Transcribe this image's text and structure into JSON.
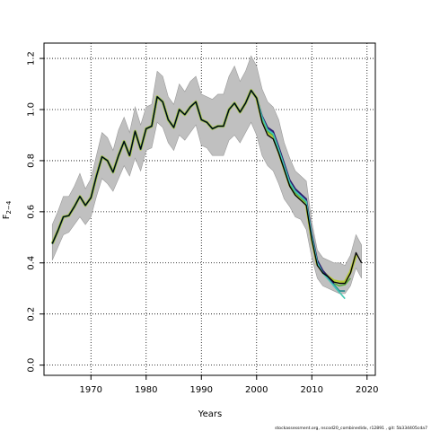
{
  "chart_data": {
    "type": "line",
    "title": "",
    "xlabel": "Years",
    "ylabel": "F",
    "ylabel_subscript": "2−4",
    "xlim": [
      1961.5,
      2021.5
    ],
    "ylim": [
      -0.04,
      1.26
    ],
    "x_ticks": [
      1970,
      1980,
      1990,
      2000,
      2010,
      2020
    ],
    "x_tick_labels": [
      "1970",
      "1980",
      "1990",
      "2000",
      "2010",
      "2020"
    ],
    "y_ticks": [
      0.0,
      0.2,
      0.4,
      0.6,
      0.8,
      1.0,
      1.2
    ],
    "y_tick_labels": [
      "0.0",
      "0.2",
      "0.4",
      "0.6",
      "0.8",
      "1.0",
      "1.2"
    ],
    "grid": true,
    "legend": "none",
    "colors": {
      "band": "#c0c0c0",
      "band_edge": "#9a9a9a",
      "main_line": "#000000",
      "retro_lines": [
        "#b5c93a",
        "#5cae3e",
        "#238a8d",
        "#3a5fa8",
        "#2a1b6e",
        "#44c7b2"
      ],
      "grid": "#000000"
    },
    "confidence_band": {
      "x": [
        1963,
        1964,
        1965,
        1966,
        1967,
        1968,
        1969,
        1970,
        1971,
        1972,
        1973,
        1974,
        1975,
        1976,
        1977,
        1978,
        1979,
        1980,
        1981,
        1982,
        1983,
        1984,
        1985,
        1986,
        1987,
        1988,
        1989,
        1990,
        1991,
        1992,
        1993,
        1994,
        1995,
        1996,
        1997,
        1998,
        1999,
        2000,
        2001,
        2002,
        2003,
        2004,
        2005,
        2006,
        2007,
        2008,
        2009,
        2010,
        2011,
        2012,
        2013,
        2014,
        2015,
        2016,
        2017,
        2018,
        2019
      ],
      "lower": [
        0.41,
        0.46,
        0.51,
        0.52,
        0.55,
        0.58,
        0.55,
        0.58,
        0.66,
        0.73,
        0.71,
        0.68,
        0.73,
        0.78,
        0.74,
        0.81,
        0.76,
        0.84,
        0.85,
        0.95,
        0.93,
        0.87,
        0.84,
        0.9,
        0.88,
        0.91,
        0.94,
        0.86,
        0.85,
        0.82,
        0.82,
        0.82,
        0.88,
        0.9,
        0.87,
        0.91,
        0.95,
        0.9,
        0.82,
        0.78,
        0.76,
        0.71,
        0.65,
        0.62,
        0.58,
        0.57,
        0.53,
        0.42,
        0.34,
        0.31,
        0.3,
        0.29,
        0.28,
        0.28,
        0.31,
        0.38,
        0.34
      ],
      "upper": [
        0.55,
        0.6,
        0.66,
        0.66,
        0.7,
        0.75,
        0.69,
        0.73,
        0.82,
        0.91,
        0.89,
        0.84,
        0.92,
        0.97,
        0.91,
        1.01,
        0.94,
        1.01,
        1.02,
        1.15,
        1.13,
        1.05,
        1.02,
        1.1,
        1.07,
        1.11,
        1.13,
        1.06,
        1.05,
        1.04,
        1.06,
        1.06,
        1.13,
        1.17,
        1.11,
        1.15,
        1.21,
        1.17,
        1.08,
        1.03,
        1.01,
        0.96,
        0.87,
        0.81,
        0.76,
        0.74,
        0.72,
        0.56,
        0.45,
        0.42,
        0.41,
        0.4,
        0.4,
        0.39,
        0.43,
        0.51,
        0.47
      ]
    },
    "series": [
      {
        "x": [
          1963,
          1964,
          1965,
          1966,
          1967,
          1968,
          1969,
          1970,
          1971,
          1972,
          1973,
          1974,
          1975,
          1976,
          1977,
          1978,
          1979,
          1980,
          1981,
          1982,
          1983,
          1984,
          1985,
          1986,
          1987,
          1988,
          1989,
          1990,
          1991,
          1992,
          1993,
          1994,
          1995,
          1996,
          1997,
          1998,
          1999,
          2000,
          2001,
          2002,
          2003,
          2004,
          2005,
          2006,
          2007,
          2008,
          2009,
          2010,
          2011,
          2012,
          2013,
          2014,
          2015,
          2016,
          2017,
          2018,
          2019
        ],
        "values": [
          0.475,
          0.525,
          0.58,
          0.585,
          0.62,
          0.66,
          0.625,
          0.655,
          0.74,
          0.815,
          0.8,
          0.755,
          0.82,
          0.875,
          0.82,
          0.915,
          0.845,
          0.925,
          0.935,
          1.05,
          1.03,
          0.96,
          0.93,
          1.0,
          0.98,
          1.01,
          1.03,
          0.96,
          0.95,
          0.925,
          0.935,
          0.935,
          1.0,
          1.025,
          0.99,
          1.025,
          1.075,
          1.045,
          0.95,
          0.9,
          0.885,
          0.83,
          0.765,
          0.7,
          0.665,
          0.645,
          0.625,
          0.49,
          0.39,
          0.36,
          0.345,
          0.325,
          0.32,
          0.32,
          0.36,
          0.44,
          0.4
        ]
      },
      {
        "x": [
          1963,
          1964,
          1965,
          1966,
          1967,
          1968,
          1969,
          1970,
          1971,
          1972,
          1973,
          1974,
          1975,
          1976,
          1977,
          1978,
          1979,
          1980,
          1981,
          1982,
          1983,
          1984,
          1985,
          1986,
          1987,
          1988,
          1989,
          1990,
          1991,
          1992,
          1993,
          1994,
          1995,
          1996,
          1997,
          1998,
          1999,
          2000,
          2001,
          2002,
          2003,
          2004,
          2005,
          2006,
          2007,
          2008,
          2009,
          2010,
          2011,
          2012,
          2013,
          2014,
          2015,
          2016,
          2017,
          2018
        ],
        "values": [
          0.475,
          0.525,
          0.58,
          0.585,
          0.62,
          0.66,
          0.625,
          0.655,
          0.74,
          0.815,
          0.8,
          0.755,
          0.82,
          0.875,
          0.82,
          0.915,
          0.845,
          0.925,
          0.935,
          1.05,
          1.03,
          0.96,
          0.93,
          1.0,
          0.98,
          1.01,
          1.03,
          0.96,
          0.95,
          0.925,
          0.935,
          0.935,
          1.0,
          1.025,
          0.99,
          1.025,
          1.075,
          1.045,
          0.96,
          0.91,
          0.895,
          0.835,
          0.77,
          0.705,
          0.67,
          0.65,
          0.63,
          0.495,
          0.395,
          0.365,
          0.345,
          0.33,
          0.325,
          0.325,
          0.365,
          0.43
        ]
      },
      {
        "x": [
          1963,
          1964,
          1965,
          1966,
          1967,
          1968,
          1969,
          1970,
          1971,
          1972,
          1973,
          1974,
          1975,
          1976,
          1977,
          1978,
          1979,
          1980,
          1981,
          1982,
          1983,
          1984,
          1985,
          1986,
          1987,
          1988,
          1989,
          1990,
          1991,
          1992,
          1993,
          1994,
          1995,
          1996,
          1997,
          1998,
          1999,
          2000,
          2001,
          2002,
          2003,
          2004,
          2005,
          2006,
          2007,
          2008,
          2009,
          2010,
          2011,
          2012,
          2013,
          2014,
          2015,
          2016,
          2017
        ],
        "values": [
          0.475,
          0.525,
          0.58,
          0.585,
          0.62,
          0.66,
          0.625,
          0.655,
          0.74,
          0.815,
          0.8,
          0.755,
          0.82,
          0.875,
          0.82,
          0.915,
          0.845,
          0.925,
          0.935,
          1.05,
          1.03,
          0.96,
          0.93,
          1.0,
          0.98,
          1.01,
          1.03,
          0.96,
          0.95,
          0.925,
          0.935,
          0.935,
          1.0,
          1.025,
          0.99,
          1.025,
          1.075,
          1.045,
          0.965,
          0.915,
          0.9,
          0.84,
          0.775,
          0.71,
          0.675,
          0.655,
          0.635,
          0.5,
          0.4,
          0.365,
          0.345,
          0.32,
          0.31,
          0.315,
          0.34
        ]
      },
      {
        "x": [
          1963,
          1964,
          1965,
          1966,
          1967,
          1968,
          1969,
          1970,
          1971,
          1972,
          1973,
          1974,
          1975,
          1976,
          1977,
          1978,
          1979,
          1980,
          1981,
          1982,
          1983,
          1984,
          1985,
          1986,
          1987,
          1988,
          1989,
          1990,
          1991,
          1992,
          1993,
          1994,
          1995,
          1996,
          1997,
          1998,
          1999,
          2000,
          2001,
          2002,
          2003,
          2004,
          2005,
          2006,
          2007,
          2008,
          2009,
          2010,
          2011,
          2012,
          2013,
          2014,
          2015,
          2016
        ],
        "values": [
          0.475,
          0.525,
          0.58,
          0.585,
          0.62,
          0.66,
          0.625,
          0.655,
          0.74,
          0.815,
          0.8,
          0.755,
          0.82,
          0.875,
          0.82,
          0.915,
          0.845,
          0.925,
          0.935,
          1.05,
          1.03,
          0.96,
          0.93,
          1.0,
          0.98,
          1.01,
          1.03,
          0.96,
          0.95,
          0.925,
          0.935,
          0.935,
          1.0,
          1.025,
          0.99,
          1.025,
          1.075,
          1.045,
          0.97,
          0.92,
          0.905,
          0.845,
          0.78,
          0.715,
          0.68,
          0.66,
          0.64,
          0.505,
          0.4,
          0.36,
          0.34,
          0.315,
          0.29,
          0.29
        ]
      },
      {
        "x": [
          1963,
          1964,
          1965,
          1966,
          1967,
          1968,
          1969,
          1970,
          1971,
          1972,
          1973,
          1974,
          1975,
          1976,
          1977,
          1978,
          1979,
          1980,
          1981,
          1982,
          1983,
          1984,
          1985,
          1986,
          1987,
          1988,
          1989,
          1990,
          1991,
          1992,
          1993,
          1994,
          1995,
          1996,
          1997,
          1998,
          1999,
          2000,
          2001,
          2002,
          2003,
          2004,
          2005,
          2006,
          2007,
          2008,
          2009,
          2010,
          2011,
          2012,
          2013,
          2014,
          2015
        ],
        "values": [
          0.475,
          0.525,
          0.58,
          0.585,
          0.62,
          0.66,
          0.625,
          0.655,
          0.74,
          0.815,
          0.8,
          0.755,
          0.82,
          0.875,
          0.82,
          0.915,
          0.845,
          0.925,
          0.935,
          1.05,
          1.03,
          0.96,
          0.93,
          1.0,
          0.98,
          1.01,
          1.03,
          0.96,
          0.95,
          0.925,
          0.935,
          0.935,
          1.0,
          1.025,
          0.99,
          1.025,
          1.075,
          1.045,
          0.97,
          0.925,
          0.91,
          0.85,
          0.785,
          0.72,
          0.685,
          0.665,
          0.645,
          0.51,
          0.405,
          0.365,
          0.34,
          0.31,
          0.285
        ]
      },
      {
        "x": [
          1963,
          1964,
          1965,
          1966,
          1967,
          1968,
          1969,
          1970,
          1971,
          1972,
          1973,
          1974,
          1975,
          1976,
          1977,
          1978,
          1979,
          1980,
          1981,
          1982,
          1983,
          1984,
          1985,
          1986,
          1987,
          1988,
          1989,
          1990,
          1991,
          1992,
          1993,
          1994,
          1995,
          1996,
          1997,
          1998,
          1999,
          2000,
          2001,
          2002,
          2003,
          2004,
          2005,
          2006,
          2007,
          2008,
          2009,
          2010,
          2011,
          2012,
          2013,
          2014
        ],
        "values": [
          0.475,
          0.525,
          0.58,
          0.585,
          0.62,
          0.66,
          0.625,
          0.655,
          0.74,
          0.815,
          0.8,
          0.755,
          0.82,
          0.875,
          0.82,
          0.915,
          0.845,
          0.925,
          0.935,
          1.05,
          1.03,
          0.96,
          0.93,
          1.0,
          0.98,
          1.01,
          1.03,
          0.96,
          0.95,
          0.925,
          0.935,
          0.935,
          1.0,
          1.025,
          0.99,
          1.025,
          1.075,
          1.045,
          0.975,
          0.93,
          0.915,
          0.855,
          0.79,
          0.725,
          0.69,
          0.67,
          0.65,
          0.515,
          0.41,
          0.37,
          0.345,
          0.32
        ]
      },
      {
        "x": [
          1963,
          1964,
          1965,
          1966,
          1967,
          1968,
          1969,
          1970,
          1971,
          1972,
          1973,
          1974,
          1975,
          1976,
          1977,
          1978,
          1979,
          1980,
          1981,
          1982,
          1983,
          1984,
          1985,
          1986,
          1987,
          1988,
          1989,
          1990,
          1991,
          1992,
          1993,
          1994,
          1995,
          1996,
          1997,
          1998,
          1999,
          2000,
          2001,
          2002,
          2003,
          2004,
          2005,
          2006,
          2007,
          2008,
          2009,
          2010,
          2011,
          2012,
          2013,
          2014,
          2015,
          2016
        ],
        "values": [
          0.475,
          0.525,
          0.58,
          0.585,
          0.62,
          0.66,
          0.625,
          0.655,
          0.74,
          0.815,
          0.8,
          0.755,
          0.82,
          0.875,
          0.82,
          0.915,
          0.845,
          0.925,
          0.935,
          1.05,
          1.03,
          0.96,
          0.93,
          1.0,
          0.98,
          1.01,
          1.03,
          0.96,
          0.95,
          0.925,
          0.935,
          0.935,
          1.0,
          1.025,
          0.99,
          1.025,
          1.075,
          1.045,
          0.97,
          0.92,
          0.905,
          0.845,
          0.78,
          0.715,
          0.68,
          0.66,
          0.64,
          0.505,
          0.4,
          0.36,
          0.335,
          0.31,
          0.285,
          0.26
        ]
      }
    ]
  },
  "footer": {
    "text": "stockassessment.org, nscod20_combinedidx, r12891 , git: 5b334405cda7"
  }
}
